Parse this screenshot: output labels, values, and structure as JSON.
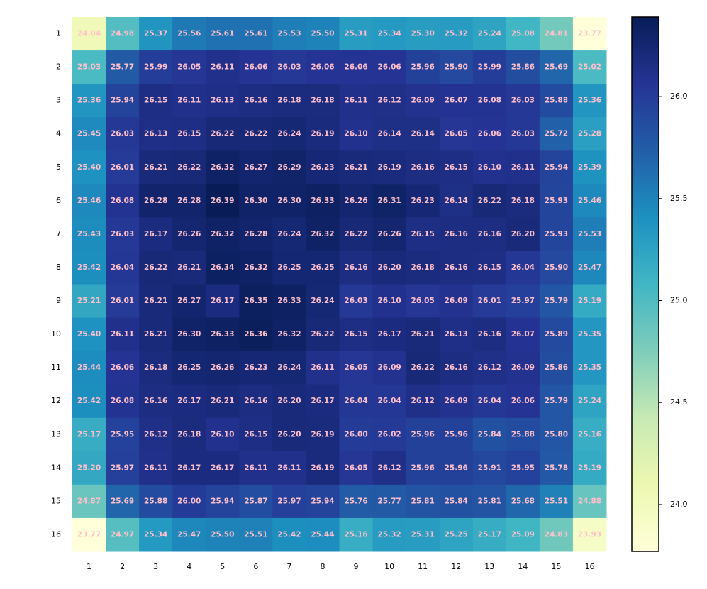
{
  "chart_data": {
    "type": "heatmap",
    "colormap": "YlGnBu",
    "label_color": "#ffc0cb",
    "x_categories": [
      "1",
      "2",
      "3",
      "4",
      "5",
      "6",
      "7",
      "8",
      "9",
      "10",
      "11",
      "12",
      "13",
      "14",
      "15",
      "16"
    ],
    "y_categories": [
      "1",
      "2",
      "3",
      "4",
      "5",
      "6",
      "7",
      "8",
      "9",
      "10",
      "11",
      "12",
      "13",
      "14",
      "15",
      "16"
    ],
    "clim": [
      23.77,
      26.39
    ],
    "cticks": [
      {
        "value": 24.0,
        "label": "24.0"
      },
      {
        "value": 24.5,
        "label": "24.5"
      },
      {
        "value": 25.0,
        "label": "25.0"
      },
      {
        "value": 25.5,
        "label": "25.5"
      },
      {
        "value": 26.0,
        "label": "26.0"
      }
    ],
    "values": [
      [
        24.04,
        24.98,
        25.37,
        25.56,
        25.61,
        25.61,
        25.53,
        25.5,
        25.31,
        25.34,
        25.3,
        25.32,
        25.24,
        25.08,
        24.81,
        23.77
      ],
      [
        25.03,
        25.77,
        25.99,
        26.05,
        26.11,
        26.06,
        26.03,
        26.06,
        26.06,
        26.06,
        25.96,
        25.9,
        25.99,
        25.86,
        25.69,
        25.02
      ],
      [
        25.36,
        25.94,
        26.15,
        26.11,
        26.13,
        26.16,
        26.18,
        26.18,
        26.11,
        26.12,
        26.09,
        26.07,
        26.08,
        26.03,
        25.88,
        25.36
      ],
      [
        25.45,
        26.03,
        26.13,
        26.15,
        26.22,
        26.22,
        26.24,
        26.19,
        26.1,
        26.14,
        26.14,
        26.05,
        26.06,
        26.03,
        25.72,
        25.28
      ],
      [
        25.4,
        26.01,
        26.21,
        26.22,
        26.32,
        26.27,
        26.29,
        26.23,
        26.21,
        26.19,
        26.16,
        26.15,
        26.1,
        26.11,
        25.94,
        25.39
      ],
      [
        25.46,
        26.08,
        26.28,
        26.28,
        26.39,
        26.3,
        26.3,
        26.33,
        26.26,
        26.31,
        26.23,
        26.14,
        26.22,
        26.18,
        25.93,
        25.46
      ],
      [
        25.43,
        26.03,
        26.17,
        26.26,
        26.32,
        26.28,
        26.24,
        26.32,
        26.22,
        26.26,
        26.15,
        26.16,
        26.16,
        26.2,
        25.93,
        25.53
      ],
      [
        25.42,
        26.04,
        26.22,
        26.21,
        26.34,
        26.32,
        26.25,
        26.25,
        26.16,
        26.2,
        26.18,
        26.16,
        26.15,
        26.04,
        25.9,
        25.47
      ],
      [
        25.21,
        26.01,
        26.21,
        26.27,
        26.17,
        26.35,
        26.33,
        26.24,
        26.03,
        26.1,
        26.05,
        26.09,
        26.01,
        25.97,
        25.79,
        25.19
      ],
      [
        25.4,
        26.11,
        26.21,
        26.3,
        26.33,
        26.36,
        26.32,
        26.22,
        26.15,
        26.17,
        26.21,
        26.13,
        26.16,
        26.07,
        25.89,
        25.35
      ],
      [
        25.44,
        26.06,
        26.18,
        26.25,
        26.26,
        26.23,
        26.24,
        26.11,
        26.05,
        26.09,
        26.22,
        26.16,
        26.12,
        26.09,
        25.86,
        25.35
      ],
      [
        25.42,
        26.08,
        26.16,
        26.17,
        26.21,
        26.16,
        26.2,
        26.17,
        26.04,
        26.04,
        26.12,
        26.09,
        26.04,
        26.06,
        25.79,
        25.24
      ],
      [
        25.17,
        25.95,
        26.12,
        26.18,
        26.1,
        26.15,
        26.2,
        26.19,
        26.0,
        26.02,
        25.96,
        25.96,
        25.84,
        25.88,
        25.8,
        25.16
      ],
      [
        25.2,
        25.97,
        26.11,
        26.17,
        26.17,
        26.11,
        26.11,
        26.19,
        26.05,
        26.12,
        25.96,
        25.96,
        25.91,
        25.95,
        25.78,
        25.19
      ],
      [
        24.87,
        25.69,
        25.88,
        26.0,
        25.94,
        25.87,
        25.97,
        25.94,
        25.76,
        25.77,
        25.81,
        25.84,
        25.81,
        25.68,
        25.51,
        24.88
      ],
      [
        23.77,
        24.97,
        25.34,
        25.47,
        25.5,
        25.51,
        25.42,
        25.44,
        25.16,
        25.32,
        25.31,
        25.25,
        25.17,
        25.09,
        24.83,
        23.93
      ]
    ],
    "value_labels": [
      [
        "24.04",
        "24.98",
        "25.37",
        "25.56",
        "25.61",
        "25.61",
        "25.53",
        "25.50",
        "25.31",
        "25.34",
        "25.30",
        "25.32",
        "25.24",
        "25.08",
        "24.81",
        "23.77"
      ],
      [
        "25.03",
        "25.77",
        "25.99",
        "26.05",
        "26.11",
        "26.06",
        "26.03",
        "26.06",
        "26.06",
        "26.06",
        "25.96",
        "25.90",
        "25.99",
        "25.86",
        "25.69",
        "25.02"
      ],
      [
        "25.36",
        "25.94",
        "26.15",
        "26.11",
        "26.13",
        "26.16",
        "26.18",
        "26.18",
        "26.11",
        "26.12",
        "26.09",
        "26.07",
        "26.08",
        "26.03",
        "25.88",
        "25.36"
      ],
      [
        "25.45",
        "26.03",
        "26.13",
        "26.15",
        "26.22",
        "26.22",
        "26.24",
        "26.19",
        "26.10",
        "26.14",
        "26.14",
        "26.05",
        "26.06",
        "26.03",
        "25.72",
        "25.28"
      ],
      [
        "25.40",
        "26.01",
        "26.21",
        "26.22",
        "26.32",
        "26.27",
        "26.29",
        "26.23",
        "26.21",
        "26.19",
        "26.16",
        "26.15",
        "26.10",
        "26.11",
        "25.94",
        "25.39"
      ],
      [
        "25.46",
        "26.08",
        "26.28",
        "26.28",
        "26.39",
        "26.30",
        "26.30",
        "26.33",
        "26.26",
        "26.31",
        "26.23",
        "26.14",
        "26.22",
        "26.18",
        "25.93",
        "25.46"
      ],
      [
        "25.43",
        "26.03",
        "26.17",
        "26.26",
        "26.32",
        "26.28",
        "26.24",
        "26.32",
        "26.22",
        "26.26",
        "26.15",
        "26.16",
        "26.16",
        "26.20",
        "25.93",
        "25.53"
      ],
      [
        "25.42",
        "26.04",
        "26.22",
        "26.21",
        "26.34",
        "26.32",
        "26.25",
        "26.25",
        "26.16",
        "26.20",
        "26.18",
        "26.16",
        "26.15",
        "26.04",
        "25.90",
        "25.47"
      ],
      [
        "25.21",
        "26.01",
        "26.21",
        "26.27",
        "26.17",
        "26.35",
        "26.33",
        "26.24",
        "26.03",
        "26.10",
        "26.05",
        "26.09",
        "26.01",
        "25.97",
        "25.79",
        "25.19"
      ],
      [
        "25.40",
        "26.11",
        "26.21",
        "26.30",
        "26.33",
        "26.36",
        "26.32",
        "26.22",
        "26.15",
        "26.17",
        "26.21",
        "26.13",
        "26.16",
        "26.07",
        "25.89",
        "25.35"
      ],
      [
        "25.44",
        "26.06",
        "26.18",
        "26.25",
        "26.26",
        "26.23",
        "26.24",
        "26.11",
        "26.05",
        "26.09",
        "26.22",
        "26.16",
        "26.12",
        "26.09",
        "25.86",
        "25.35"
      ],
      [
        "25.42",
        "26.08",
        "26.16",
        "26.17",
        "26.21",
        "26.16",
        "26.20",
        "26.17",
        "26.04",
        "26.04",
        "26.12",
        "26.09",
        "26.04",
        "26.06",
        "25.79",
        "25.24"
      ],
      [
        "25.17",
        "25.95",
        "26.12",
        "26.18",
        "26.10",
        "26.15",
        "26.20",
        "26.19",
        "26.00",
        "26.02",
        "25.96",
        "25.96",
        "25.84",
        "25.88",
        "25.80",
        "25.16"
      ],
      [
        "25.20",
        "25.97",
        "26.11",
        "26.17",
        "26.17",
        "26.11",
        "26.11",
        "26.19",
        "26.05",
        "26.12",
        "25.96",
        "25.96",
        "25.91",
        "25.95",
        "25.78",
        "25.19"
      ],
      [
        "24.87",
        "25.69",
        "25.88",
        "26.00",
        "25.94",
        "25.87",
        "25.97",
        "25.94",
        "25.76",
        "25.77",
        "25.81",
        "25.84",
        "25.81",
        "25.68",
        "25.51",
        "24.88"
      ],
      [
        "23.77",
        "24.97",
        "25.34",
        "25.47",
        "25.50",
        "25.51",
        "25.42",
        "25.44",
        "25.16",
        "25.32",
        "25.31",
        "25.25",
        "25.17",
        "25.09",
        "24.83",
        "23.93"
      ]
    ]
  }
}
